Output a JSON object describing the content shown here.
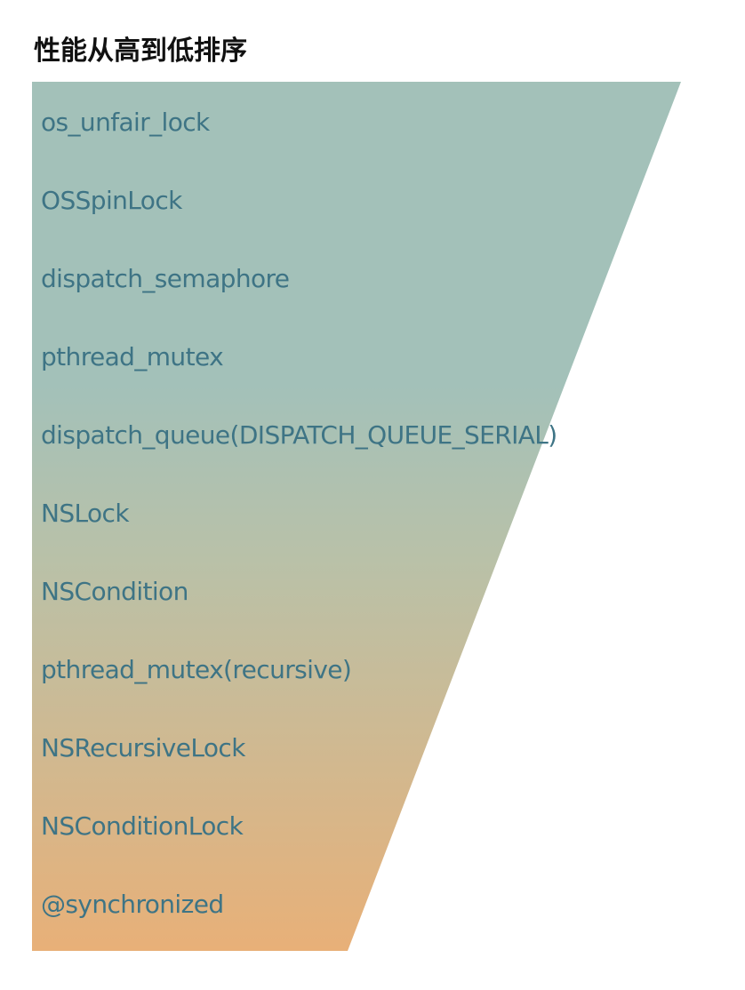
{
  "title": "性能从高到低排序",
  "colors": {
    "gradient_top": "#A3C1B9",
    "gradient_mid": "#B9C1A8",
    "gradient_bottom": "#E8B078",
    "label_text": "#3E7485",
    "title_text": "#111111"
  },
  "locks": [
    "os_unfair_lock",
    "OSSpinLock",
    "dispatch_semaphore",
    "pthread_mutex",
    "dispatch_queue(DISPATCH_QUEUE_SERIAL)",
    "NSLock",
    "NSCondition",
    "pthread_mutex(recursive)",
    "NSRecursiveLock",
    "NSConditionLock",
    "@synchronized"
  ]
}
